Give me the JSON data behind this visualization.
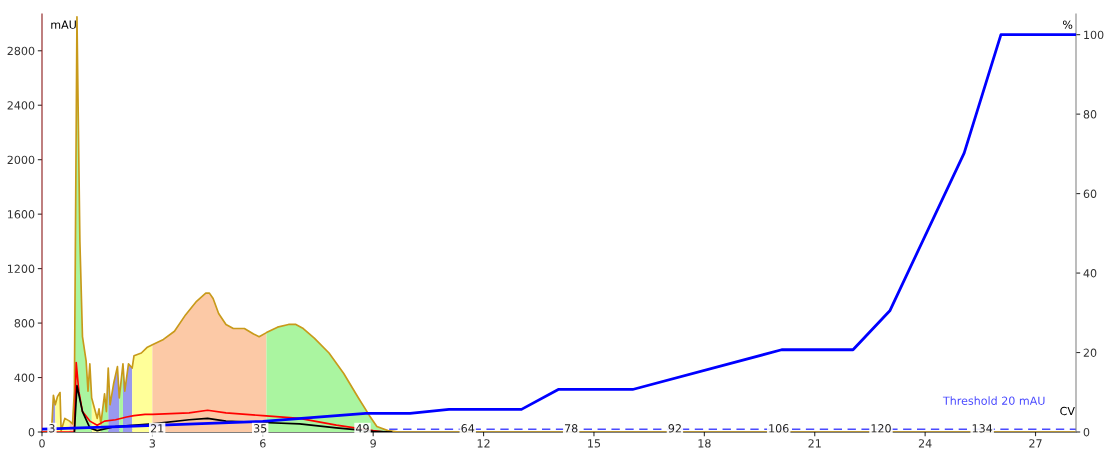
{
  "chart_data": {
    "type": "line",
    "xlabel": "CV",
    "ylabel": "mAU",
    "y2label": "%",
    "xlim": [
      0,
      28.1
    ],
    "xticks": [
      0,
      3,
      6,
      9,
      12,
      15,
      18,
      21,
      24,
      27
    ],
    "ylim": [
      0,
      3070
    ],
    "yticks": [
      0,
      400,
      800,
      1200,
      1600,
      2000,
      2400,
      2800
    ],
    "y2lim": [
      0,
      105.2
    ],
    "y2ticks": [
      0,
      20,
      40,
      60,
      80,
      100
    ],
    "grid": false,
    "marker": "none",
    "line_style": "solid",
    "series": [
      {
        "type": "area",
        "color": "#9999ee",
        "x": [
          0.26,
          0.31,
          0.36,
          1.0,
          1.8,
          1.85,
          1.95,
          2.05,
          2.1,
          2.15,
          2.2,
          2.25,
          2.35,
          2.45
        ],
        "values": [
          10,
          270,
          200,
          null,
          470,
          200,
          360,
          480,
          250,
          null,
          500,
          300,
          500,
          470
        ]
      },
      {
        "type": "area",
        "color": "#ffff99",
        "x": [
          0.36,
          0.42,
          0.49,
          0.52,
          0.62,
          0.75,
          1.0,
          1.35,
          1.45,
          1.5,
          1.55,
          1.6,
          2.0,
          2.45,
          2.5,
          2.7,
          2.85,
          3.0
        ],
        "values": [
          200,
          260,
          290,
          10,
          100,
          80,
          null,
          250,
          150,
          100,
          170,
          60,
          null,
          470,
          560,
          580,
          620,
          640
        ]
      },
      {
        "type": "area",
        "color": "#fcc9a6",
        "x": [
          0.75,
          0.83,
          0.88,
          2.0,
          3.0,
          3.3,
          3.6,
          3.9,
          4.2,
          4.45,
          4.55,
          4.65,
          4.8,
          5.0,
          5.2,
          5.5,
          5.75,
          5.9,
          6.1
        ],
        "values": [
          80,
          60,
          300,
          null,
          640,
          680,
          740,
          860,
          960,
          1020,
          1020,
          980,
          870,
          790,
          760,
          760,
          720,
          700,
          730
        ]
      },
      {
        "type": "area",
        "color": "#aaf5a0",
        "x": [
          0.88,
          0.95,
          1.03,
          1.1,
          1.2,
          1.25,
          1.3,
          1.35,
          1.5,
          1.6,
          1.7,
          1.75,
          1.8,
          2.0,
          2.1,
          2.2,
          4.0,
          6.1,
          6.4,
          6.7,
          6.9,
          7.1,
          7.4,
          7.8,
          8.2,
          8.6,
          8.9,
          9.1,
          9.4
        ],
        "values": [
          300,
          3050,
          1400,
          700,
          520,
          300,
          500,
          250,
          null,
          60,
          280,
          150,
          470,
          null,
          250,
          500,
          null,
          730,
          770,
          790,
          790,
          760,
          690,
          580,
          430,
          250,
          120,
          40,
          10
        ]
      },
      {
        "color": "#c89a1a",
        "x": [
          0,
          0.26,
          0.31,
          0.36,
          0.42,
          0.49,
          0.52,
          0.62,
          0.75,
          0.83,
          0.88,
          0.95,
          1.03,
          1.1,
          1.2,
          1.25,
          1.3,
          1.35,
          1.45,
          1.5,
          1.55,
          1.6,
          1.7,
          1.75,
          1.8,
          1.85,
          1.95,
          2.05,
          2.1,
          2.2,
          2.25,
          2.35,
          2.45,
          2.5,
          2.7,
          2.85,
          3.0,
          3.3,
          3.6,
          3.9,
          4.2,
          4.45,
          4.55,
          4.65,
          4.8,
          5.0,
          5.2,
          5.5,
          5.75,
          5.9,
          6.1,
          6.4,
          6.7,
          6.9,
          7.1,
          7.4,
          7.8,
          8.2,
          8.6,
          8.9,
          9.1,
          9.4,
          9.7,
          28.1
        ],
        "values": [
          0,
          10,
          270,
          200,
          260,
          290,
          10,
          100,
          80,
          60,
          300,
          3050,
          1400,
          700,
          520,
          300,
          500,
          250,
          150,
          100,
          170,
          60,
          280,
          150,
          470,
          200,
          360,
          480,
          250,
          500,
          300,
          500,
          470,
          560,
          580,
          620,
          640,
          680,
          740,
          860,
          960,
          1020,
          1020,
          980,
          870,
          790,
          760,
          760,
          720,
          700,
          730,
          770,
          790,
          790,
          760,
          690,
          580,
          430,
          250,
          120,
          40,
          10,
          0,
          0
        ]
      },
      {
        "color": "#ff0000",
        "x": [
          0,
          0.88,
          0.93,
          1.0,
          1.1,
          1.3,
          1.5,
          1.7,
          2.0,
          2.3,
          2.5,
          2.8,
          3.0,
          4.0,
          4.5,
          5.0,
          6.0,
          7.0,
          8.0,
          9.0,
          9.3
        ],
        "values": [
          0,
          0,
          510,
          300,
          150,
          80,
          50,
          80,
          90,
          110,
          120,
          130,
          130,
          140,
          160,
          140,
          120,
          100,
          50,
          10,
          0
        ]
      },
      {
        "color": "#000000",
        "x": [
          0.88,
          0.95,
          1.1,
          1.3,
          1.5,
          2.0,
          3.0,
          4.0,
          4.5,
          5.0,
          6.0,
          7.0,
          8.0,
          9.0,
          9.5
        ],
        "values": [
          0,
          340,
          150,
          30,
          10,
          40,
          60,
          90,
          100,
          80,
          70,
          60,
          30,
          5,
          0
        ]
      },
      {
        "color": "#0000ff",
        "axis": "y2",
        "x": [
          0,
          2.5,
          6,
          8.8,
          10.0,
          11.06,
          13.03,
          14.03,
          16.05,
          20.1,
          22.04,
          23.04,
          25.06,
          26.06,
          28.1
        ],
        "values": [
          0.7,
          1.5,
          2.7,
          4.7,
          4.7,
          5.7,
          5.7,
          10.7,
          10.7,
          20.7,
          20.7,
          30.5,
          70.2,
          100,
          100
        ]
      }
    ],
    "ref_lines": [
      {
        "axis": "y",
        "value": 20,
        "label": "Threshold 20 mAU",
        "color": "#4a4aff",
        "line_style": "dashed"
      }
    ],
    "annotations": [
      {
        "text": "3",
        "x": 0.27,
        "y": 20
      },
      {
        "text": "21",
        "x": 3.13,
        "y": 20
      },
      {
        "text": "35",
        "x": 5.93,
        "y": 20
      },
      {
        "text": "49",
        "x": 8.71,
        "y": 20
      },
      {
        "text": "64",
        "x": 11.57,
        "y": 20
      },
      {
        "text": "78",
        "x": 14.38,
        "y": 20
      },
      {
        "text": "92",
        "x": 17.2,
        "y": 20
      },
      {
        "text": "106",
        "x": 20.02,
        "y": 20
      },
      {
        "text": "120",
        "x": 22.8,
        "y": 20
      },
      {
        "text": "134",
        "x": 25.55,
        "y": 20
      }
    ]
  }
}
